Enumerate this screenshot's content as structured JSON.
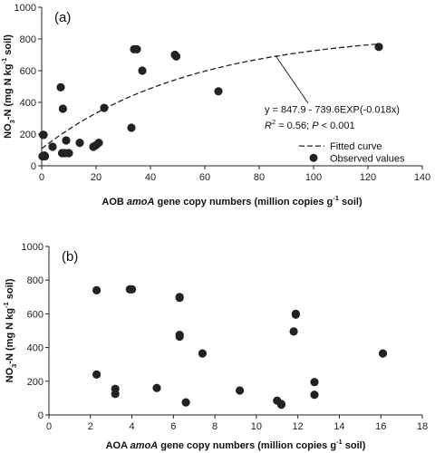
{
  "chart_data": [
    {
      "type": "scatter",
      "panel_label": "(a)",
      "xlabel": {
        "pre": "AOB ",
        "italic": "amoA",
        "post": " gene copy numbers (million copies g",
        "sup": "-1",
        "tail": " soil)"
      },
      "ylabel": {
        "a": "NO",
        "sub": "3",
        "b": "-N (mg N kg",
        "sup": "-1",
        "c": " soil)"
      },
      "xlim": [
        0,
        140
      ],
      "ylim": [
        0,
        1000
      ],
      "xticks": [
        "0",
        "20",
        "40",
        "60",
        "80",
        "100",
        "120",
        "140"
      ],
      "yticks": [
        "0",
        "200",
        "400",
        "600",
        "800",
        "1000"
      ],
      "grid": false,
      "legend_position": "bottom-right",
      "series": [
        {
          "name": "Observed values",
          "x": [
            0.3,
            0.5,
            0.7,
            1.0,
            1.2,
            4.0,
            7.0,
            7.5,
            7.8,
            8.5,
            9.0,
            10.0,
            14.0,
            19.0,
            20.0,
            21.0,
            23.0,
            33.0,
            34.0,
            35.0,
            37.0,
            49.0,
            49.5,
            65.0,
            124.0
          ],
          "y": [
            60,
            195,
            195,
            65,
            60,
            120,
            495,
            80,
            360,
            80,
            160,
            80,
            145,
            120,
            130,
            145,
            365,
            240,
            735,
            735,
            600,
            700,
            690,
            470,
            750
          ]
        },
        {
          "name": "Fitted curve",
          "equation_parts": {
            "eq": "y = 847.9 - 739.6EXP(-0.018x)",
            "r2_pre": "R",
            "r2_sup": "2",
            "r2_post": " = 0.56;  ",
            "p_italic": "P",
            "p_post": " < 0.001"
          },
          "params": {
            "a": 847.9,
            "b": 739.6,
            "k": 0.018
          },
          "x_range": [
            0,
            124
          ]
        }
      ]
    },
    {
      "type": "scatter",
      "panel_label": "(b)",
      "xlabel": {
        "pre": "AOA ",
        "italic": "amoA",
        "post": " gene copy numbers (million copies g",
        "sup": "-1",
        "tail": " soil)"
      },
      "ylabel": {
        "a": "NO",
        "sub": "3",
        "b": "-N (mg N kg",
        "sup": "-1",
        "c": " soil)"
      },
      "xlim": [
        0,
        18
      ],
      "ylim": [
        0,
        1000
      ],
      "xticks": [
        "0",
        "2",
        "4",
        "6",
        "8",
        "10",
        "12",
        "14",
        "16",
        "18"
      ],
      "yticks": [
        "0",
        "200",
        "400",
        "600",
        "800",
        "1000"
      ],
      "grid": false,
      "series": [
        {
          "name": "Observed values",
          "x": [
            2.3,
            2.3,
            3.2,
            3.2,
            3.9,
            4.0,
            5.2,
            6.3,
            6.3,
            6.3,
            6.3,
            6.6,
            7.4,
            9.2,
            11.0,
            11.2,
            11.2,
            11.8,
            11.9,
            11.9,
            12.8,
            12.8,
            16.1
          ],
          "y": [
            740,
            240,
            155,
            125,
            745,
            745,
            160,
            700,
            695,
            475,
            465,
            75,
            365,
            145,
            85,
            65,
            60,
            495,
            600,
            595,
            195,
            120,
            365
          ]
        }
      ]
    }
  ]
}
